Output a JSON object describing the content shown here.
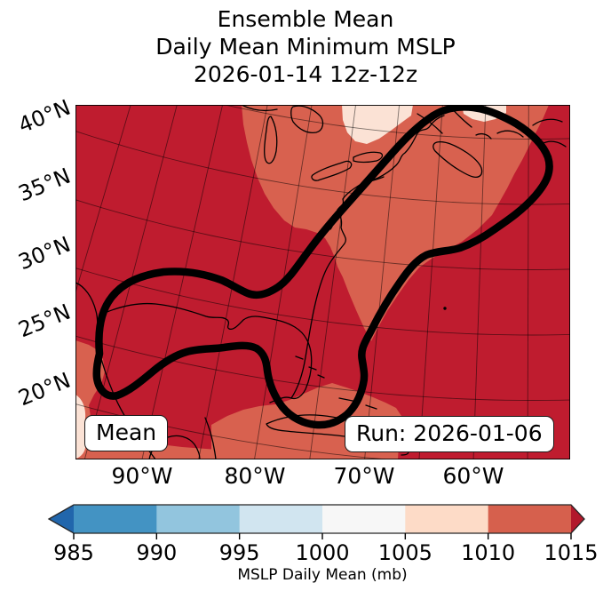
{
  "title": {
    "line1": "Ensemble Mean",
    "line2": "Daily Mean Minimum MSLP",
    "line3": "2026-01-14 12z-12z"
  },
  "map": {
    "annotation_left": "Mean",
    "annotation_right": "Run: 2026-01-06",
    "lat_labels": [
      "40°N",
      "35°N",
      "30°N",
      "25°N",
      "20°N"
    ],
    "lon_labels": [
      "90°W",
      "80°W",
      "70°W",
      "60°W"
    ],
    "fill_over_1015": "#bf1c2f",
    "fill_1010_1015": "#d8614f",
    "fill_1005_1010": "#fbe2d5",
    "contour_color": "#000000",
    "coastline_color": "#000000",
    "graticule_color": "rgba(0,0,0,0.5)"
  },
  "colorbar": {
    "label": "MSLP Daily Mean (mb)",
    "tick_labels": [
      "985",
      "990",
      "995",
      "1000",
      "1005",
      "1010",
      "1015"
    ],
    "under_color": "#2166ac",
    "segment_colors": [
      "#4393c3",
      "#92c5de",
      "#d1e5f0",
      "#f7f7f7",
      "#fddbc7",
      "#d6604d"
    ],
    "over_color": "#b2182b",
    "outline_color": "#262626"
  },
  "chart_data": {
    "type": "heatmap",
    "subtype": "filled_contour_weather_map",
    "title": "Ensemble Mean",
    "subtitle": "Daily Mean Minimum MSLP",
    "valid_time": "2026-01-14 12z-12z",
    "run_annotation": "Run: 2026-01-06",
    "statistic_annotation": "Mean",
    "variable": "MSLP Daily Mean (mb)",
    "colorbar_ticks": [
      985,
      990,
      995,
      1000,
      1005,
      1010,
      1015
    ],
    "colorbar_extend": "both",
    "lat_ticks_deg_n": [
      20,
      25,
      30,
      35,
      40
    ],
    "lon_ticks_deg_w": [
      90,
      80,
      70,
      60
    ],
    "grid": true,
    "legend_position": "bottom",
    "regions": [
      {
        "range_mb": ">1015",
        "color": "#bf1c2f",
        "coverage": "majority of domain: interior US, western Gulf of Mexico, open Atlantic, far northeast corner"
      },
      {
        "range_mb": "1010-1015",
        "color": "#d8614f",
        "coverage": "Great Lakes to New England corridor, Atlantic coastal band to the Carolinas, Caribbean / Cuba / Yucatan fringe, lower-left edge"
      },
      {
        "range_mb": "1005-1010",
        "color": "#fbe2d5",
        "coverage": "small patches near top (southern Quebec and Gulf of St. Lawrence) and bottom-left corner"
      }
    ],
    "contour": {
      "description": "single thick black closed contour looping from the western Gulf of Mexico along the Gulf Coast states, up the US East Coast to the Canadian Maritimes, back offshore and around Florida/Cuba",
      "color": "#000000"
    }
  }
}
